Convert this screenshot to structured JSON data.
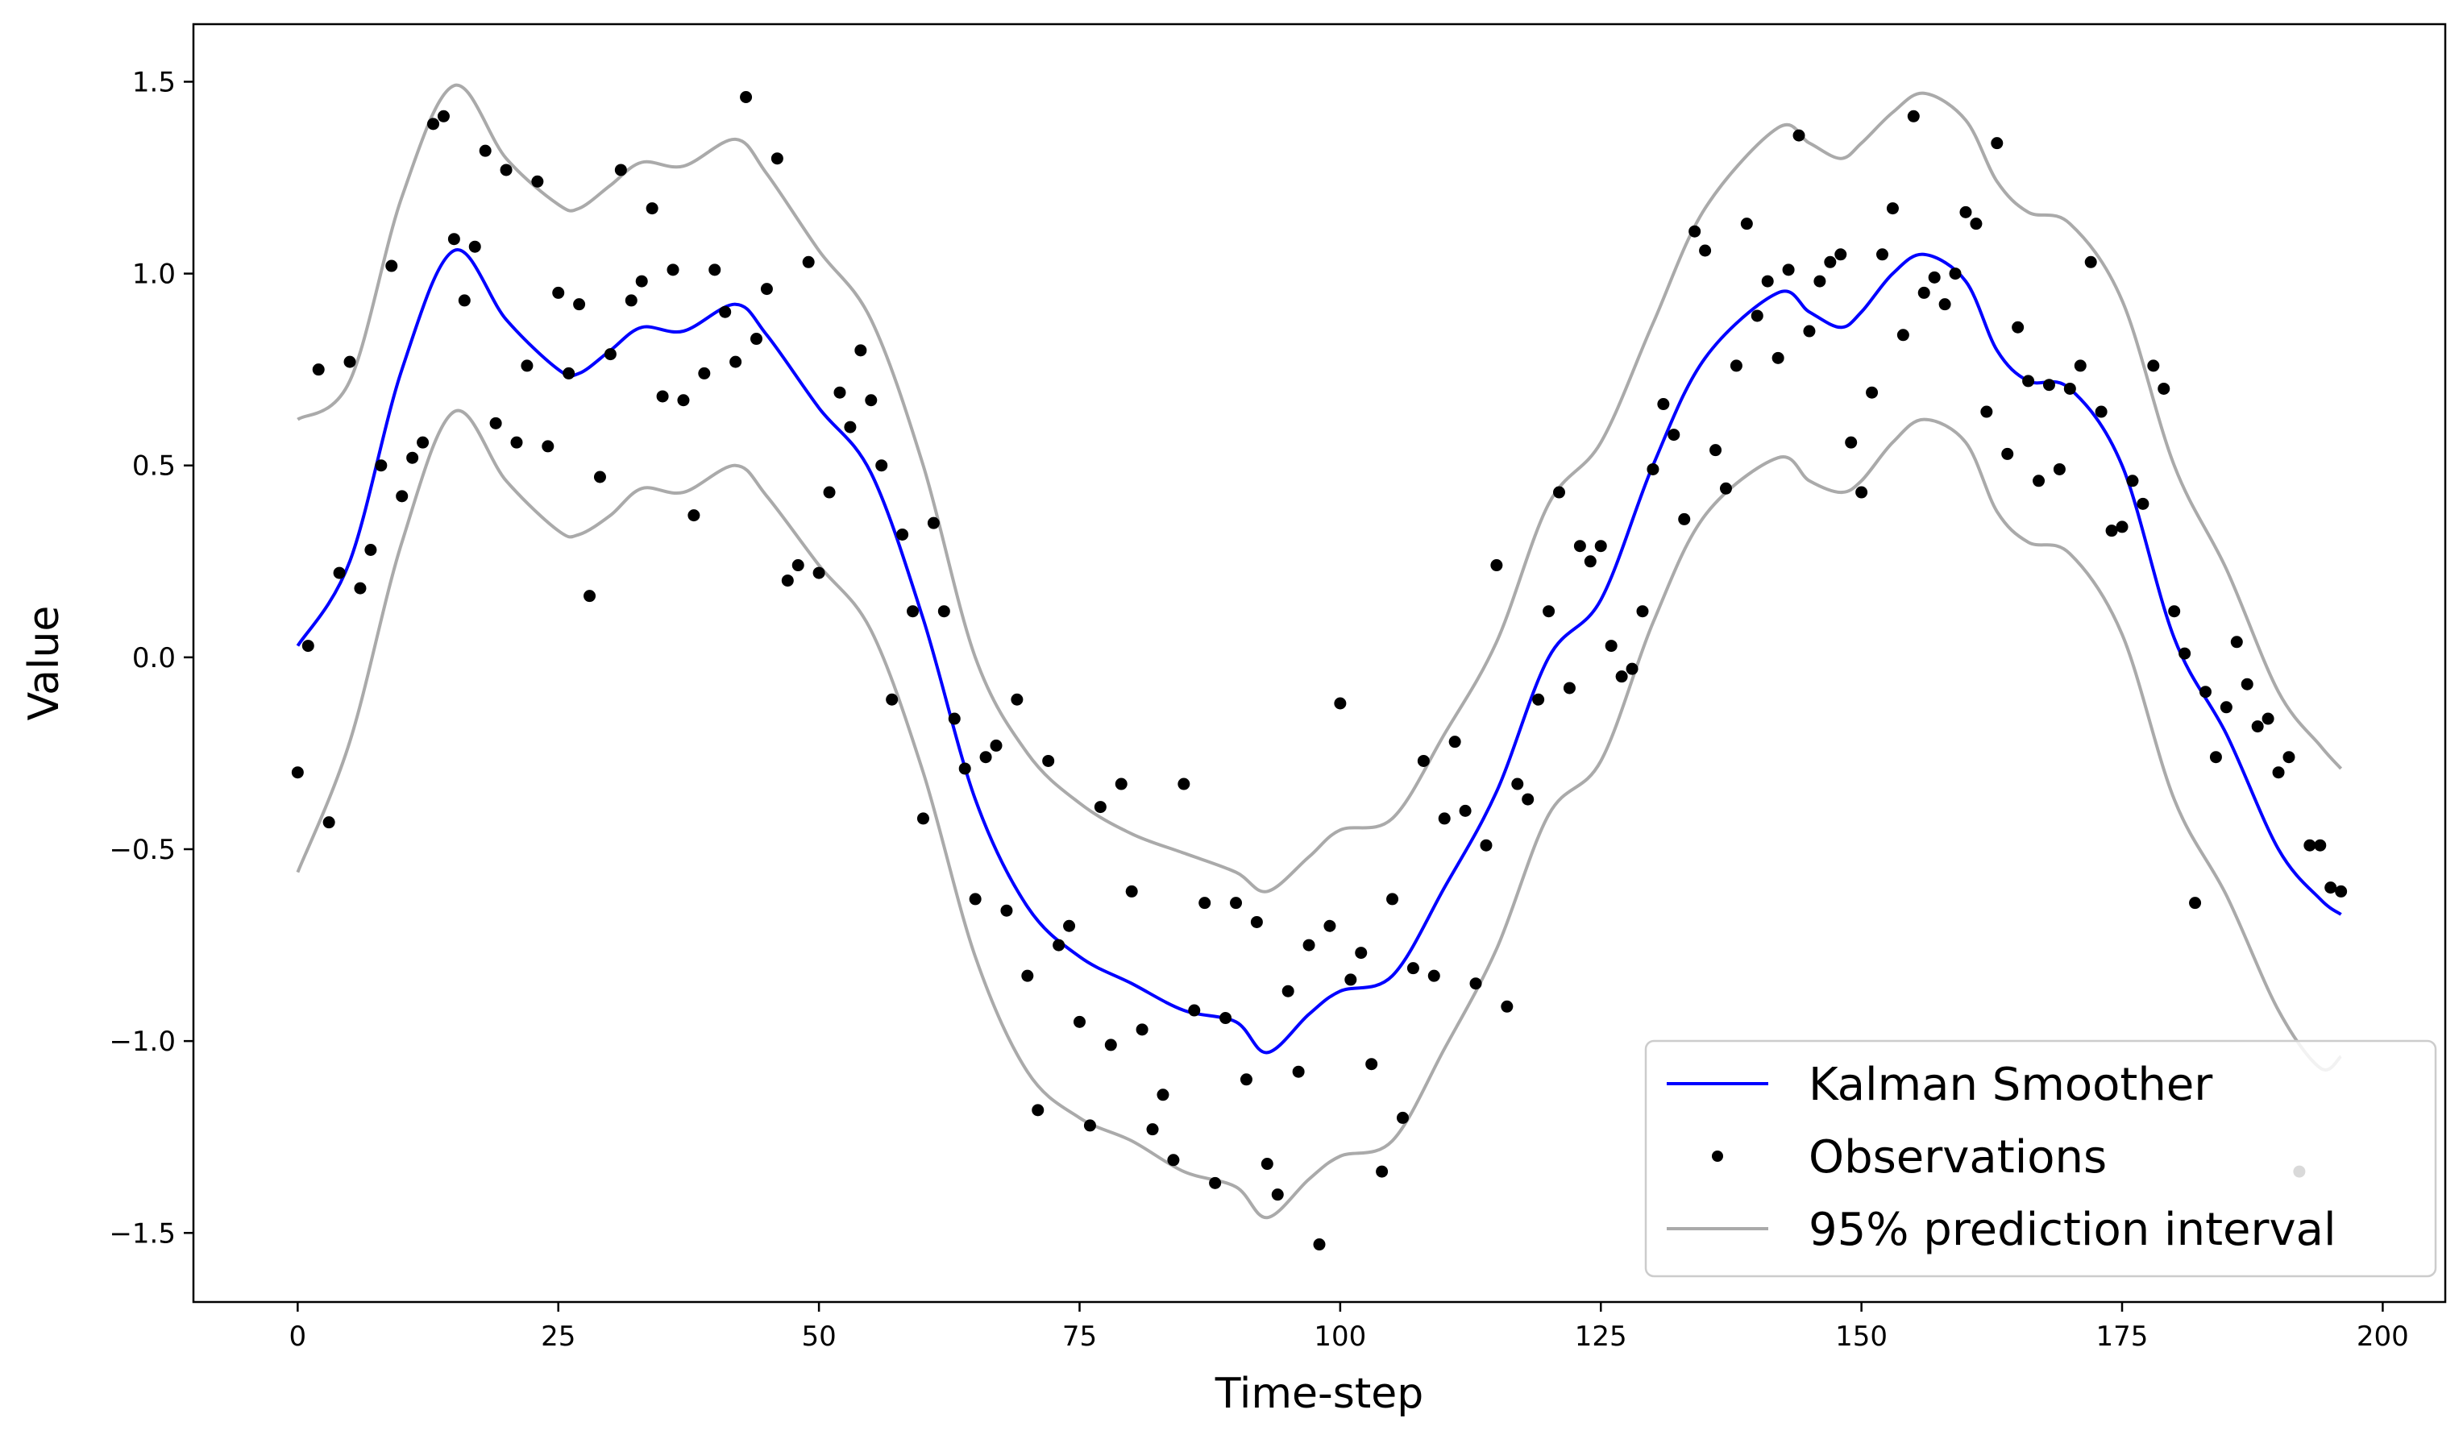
{
  "chart_data": {
    "type": "line",
    "title": "",
    "xlabel": "Time-step",
    "ylabel": "Value",
    "xlim": [
      -10,
      206
    ],
    "ylim": [
      -1.68,
      1.65
    ],
    "x_ticks": [
      0,
      25,
      50,
      75,
      100,
      125,
      150,
      175,
      200
    ],
    "x_tick_labels": [
      "0",
      "25",
      "50",
      "75",
      "100",
      "125",
      "150",
      "175",
      "200"
    ],
    "y_ticks": [
      -1.5,
      -1.0,
      -0.5,
      0.0,
      0.5,
      1.0,
      1.5
    ],
    "y_tick_labels": [
      "−1.5",
      "−1.0",
      "−0.5",
      "0.0",
      "0.5",
      "1.0",
      "1.5"
    ],
    "grid": false,
    "legend_position": "bottom-right",
    "colors": {
      "smoother": "#0000ff",
      "observations": "#000000",
      "interval": "#aaaaaa",
      "legend_border": "#cccccc"
    },
    "series": [
      {
        "name": "Kalman Smoother",
        "kind": "line",
        "color": "#0000ff",
        "x": [
          0,
          5,
          10,
          15,
          20,
          25,
          27,
          30,
          33,
          37,
          42,
          45,
          50,
          55,
          60,
          65,
          70,
          75,
          80,
          85,
          90,
          93,
          97,
          100,
          105,
          110,
          115,
          120,
          125,
          130,
          135,
          142,
          145,
          148,
          150,
          153,
          156,
          160,
          163,
          166,
          170,
          175,
          180,
          185,
          190,
          194,
          196
        ],
        "y": [
          0.03,
          0.25,
          0.75,
          1.06,
          0.88,
          0.75,
          0.74,
          0.8,
          0.86,
          0.85,
          0.92,
          0.84,
          0.65,
          0.48,
          0.1,
          -0.37,
          -0.65,
          -0.78,
          -0.85,
          -0.92,
          -0.95,
          -1.03,
          -0.93,
          -0.87,
          -0.83,
          -0.6,
          -0.35,
          0.0,
          0.15,
          0.5,
          0.78,
          0.95,
          0.9,
          0.86,
          0.9,
          1.0,
          1.05,
          0.98,
          0.8,
          0.72,
          0.7,
          0.5,
          0.05,
          -0.2,
          -0.5,
          -0.63,
          -0.67
        ]
      },
      {
        "name": "Observations",
        "kind": "scatter",
        "color": "#000000",
        "x": [
          0,
          1,
          2,
          3,
          4,
          5,
          6,
          7,
          8,
          9,
          10,
          11,
          12,
          13,
          14,
          15,
          16,
          17,
          18,
          19,
          20,
          21,
          22,
          23,
          24,
          25,
          26,
          27,
          28,
          29,
          30,
          31,
          32,
          33,
          34,
          35,
          36,
          37,
          38,
          39,
          40,
          41,
          42,
          43,
          44,
          45,
          46,
          47,
          48,
          49,
          50,
          51,
          52,
          53,
          54,
          55,
          56,
          57,
          58,
          59,
          60,
          61,
          62,
          63,
          64,
          65,
          66,
          67,
          68,
          69,
          70,
          71,
          72,
          73,
          74,
          75,
          76,
          77,
          78,
          79,
          80,
          81,
          82,
          83,
          84,
          85,
          86,
          87,
          88,
          89,
          90,
          91,
          92,
          93,
          94,
          95,
          96,
          97,
          98,
          99,
          100,
          101,
          102,
          103,
          104,
          105,
          106,
          107,
          108,
          109,
          110,
          111,
          112,
          113,
          114,
          115,
          116,
          117,
          118,
          119,
          120,
          121,
          122,
          123,
          124,
          125,
          126,
          127,
          128,
          129,
          130,
          131,
          132,
          133,
          134,
          135,
          136,
          137,
          138,
          139,
          140,
          141,
          142,
          143,
          144,
          145,
          146,
          147,
          148,
          149,
          150,
          151,
          152,
          153,
          154,
          155,
          156,
          157,
          158,
          159,
          160,
          161,
          162,
          163,
          164,
          165,
          166,
          167,
          168,
          169,
          170,
          171,
          172,
          173,
          174,
          175,
          176,
          177,
          178,
          179,
          180,
          181,
          182,
          183,
          184,
          185,
          186,
          187,
          188,
          189,
          190,
          191,
          192,
          193,
          194,
          195,
          196
        ],
        "y": [
          -0.3,
          0.03,
          0.75,
          -0.43,
          0.22,
          0.77,
          0.18,
          0.28,
          0.5,
          1.02,
          0.42,
          0.52,
          0.56,
          1.39,
          1.41,
          1.09,
          0.93,
          1.07,
          1.32,
          0.61,
          1.27,
          0.56,
          0.76,
          1.24,
          0.55,
          0.95,
          0.74,
          0.92,
          0.16,
          0.47,
          0.79,
          1.27,
          0.93,
          0.98,
          1.17,
          0.68,
          1.01,
          0.67,
          0.37,
          0.74,
          1.01,
          0.9,
          0.77,
          1.46,
          0.83,
          0.96,
          1.3,
          0.2,
          0.24,
          1.03,
          0.22,
          0.43,
          0.69,
          0.6,
          0.8,
          0.67,
          0.5,
          -0.11,
          0.32,
          0.12,
          -0.42,
          0.35,
          0.12,
          -0.16,
          -0.29,
          -0.63,
          -0.26,
          -0.23,
          -0.66,
          -0.11,
          -0.83,
          -1.18,
          -0.27,
          -0.75,
          -0.7,
          -0.95,
          -1.22,
          -0.39,
          -1.01,
          -0.33,
          -0.61,
          -0.97,
          -1.23,
          -1.14,
          -1.31,
          -0.33,
          -0.92,
          -0.64,
          -1.37,
          -0.94,
          -0.64,
          -1.1,
          -0.69,
          -1.32,
          -1.4,
          -0.87,
          -1.08,
          -0.75,
          -1.53,
          -0.7,
          -0.12,
          -0.84,
          -0.77,
          -1.06,
          -1.34,
          -0.63,
          -1.2,
          -0.81,
          -0.27,
          -0.83,
          -0.42,
          -0.22,
          -0.4,
          -0.85,
          -0.49,
          0.24,
          -0.91,
          -0.33,
          -0.37,
          -0.11,
          0.12,
          0.43,
          -0.08,
          0.29,
          0.25,
          0.29,
          0.03,
          -0.05,
          -0.03,
          0.12,
          0.49,
          0.66,
          0.58,
          0.36,
          1.11,
          1.06,
          0.54,
          0.44,
          0.76,
          1.13,
          0.89,
          0.98,
          0.78,
          1.01,
          1.36,
          0.85,
          0.98,
          1.03,
          1.05,
          0.56,
          0.43,
          0.69,
          1.05,
          1.17,
          0.84,
          1.41,
          0.95,
          0.99,
          0.92,
          1.0,
          1.16,
          1.13,
          0.64,
          1.34,
          0.53,
          0.86,
          0.72,
          0.46,
          0.71,
          0.49,
          0.7,
          0.76,
          1.03,
          0.64,
          0.33,
          0.34,
          0.46,
          0.4,
          0.76,
          0.7,
          0.12,
          0.01,
          -0.64,
          -0.09,
          -0.26,
          -0.13,
          0.04,
          -0.07,
          -0.18,
          -0.16,
          -0.3,
          -0.26,
          -1.34,
          -0.49,
          -0.49,
          -0.6,
          -0.61
        ]
      },
      {
        "name": "95% prediction interval",
        "kind": "band",
        "color": "#aaaaaa",
        "x": [
          0,
          5,
          10,
          15,
          20,
          25,
          27,
          30,
          33,
          37,
          42,
          45,
          50,
          55,
          60,
          65,
          70,
          75,
          80,
          85,
          90,
          93,
          97,
          100,
          105,
          110,
          115,
          120,
          125,
          130,
          135,
          142,
          145,
          148,
          150,
          153,
          156,
          160,
          163,
          166,
          170,
          175,
          180,
          185,
          190,
          194,
          196
        ],
        "upper": [
          0.62,
          0.72,
          1.2,
          1.49,
          1.3,
          1.18,
          1.17,
          1.23,
          1.29,
          1.28,
          1.35,
          1.26,
          1.06,
          0.88,
          0.5,
          0.0,
          -0.25,
          -0.38,
          -0.46,
          -0.51,
          -0.56,
          -0.61,
          -0.52,
          -0.45,
          -0.42,
          -0.2,
          0.04,
          0.4,
          0.56,
          0.87,
          1.17,
          1.38,
          1.34,
          1.3,
          1.34,
          1.42,
          1.47,
          1.4,
          1.24,
          1.16,
          1.13,
          0.93,
          0.5,
          0.23,
          -0.09,
          -0.23,
          -0.29
        ],
        "lower": [
          -0.56,
          -0.22,
          0.3,
          0.64,
          0.46,
          0.33,
          0.32,
          0.37,
          0.44,
          0.43,
          0.5,
          0.42,
          0.24,
          0.07,
          -0.3,
          -0.78,
          -1.08,
          -1.2,
          -1.26,
          -1.34,
          -1.38,
          -1.46,
          -1.36,
          -1.3,
          -1.26,
          -1.02,
          -0.76,
          -0.41,
          -0.27,
          0.09,
          0.37,
          0.52,
          0.46,
          0.43,
          0.46,
          0.56,
          0.62,
          0.56,
          0.38,
          0.3,
          0.27,
          0.06,
          -0.37,
          -0.62,
          -0.92,
          -1.07,
          -1.04
        ]
      }
    ]
  }
}
